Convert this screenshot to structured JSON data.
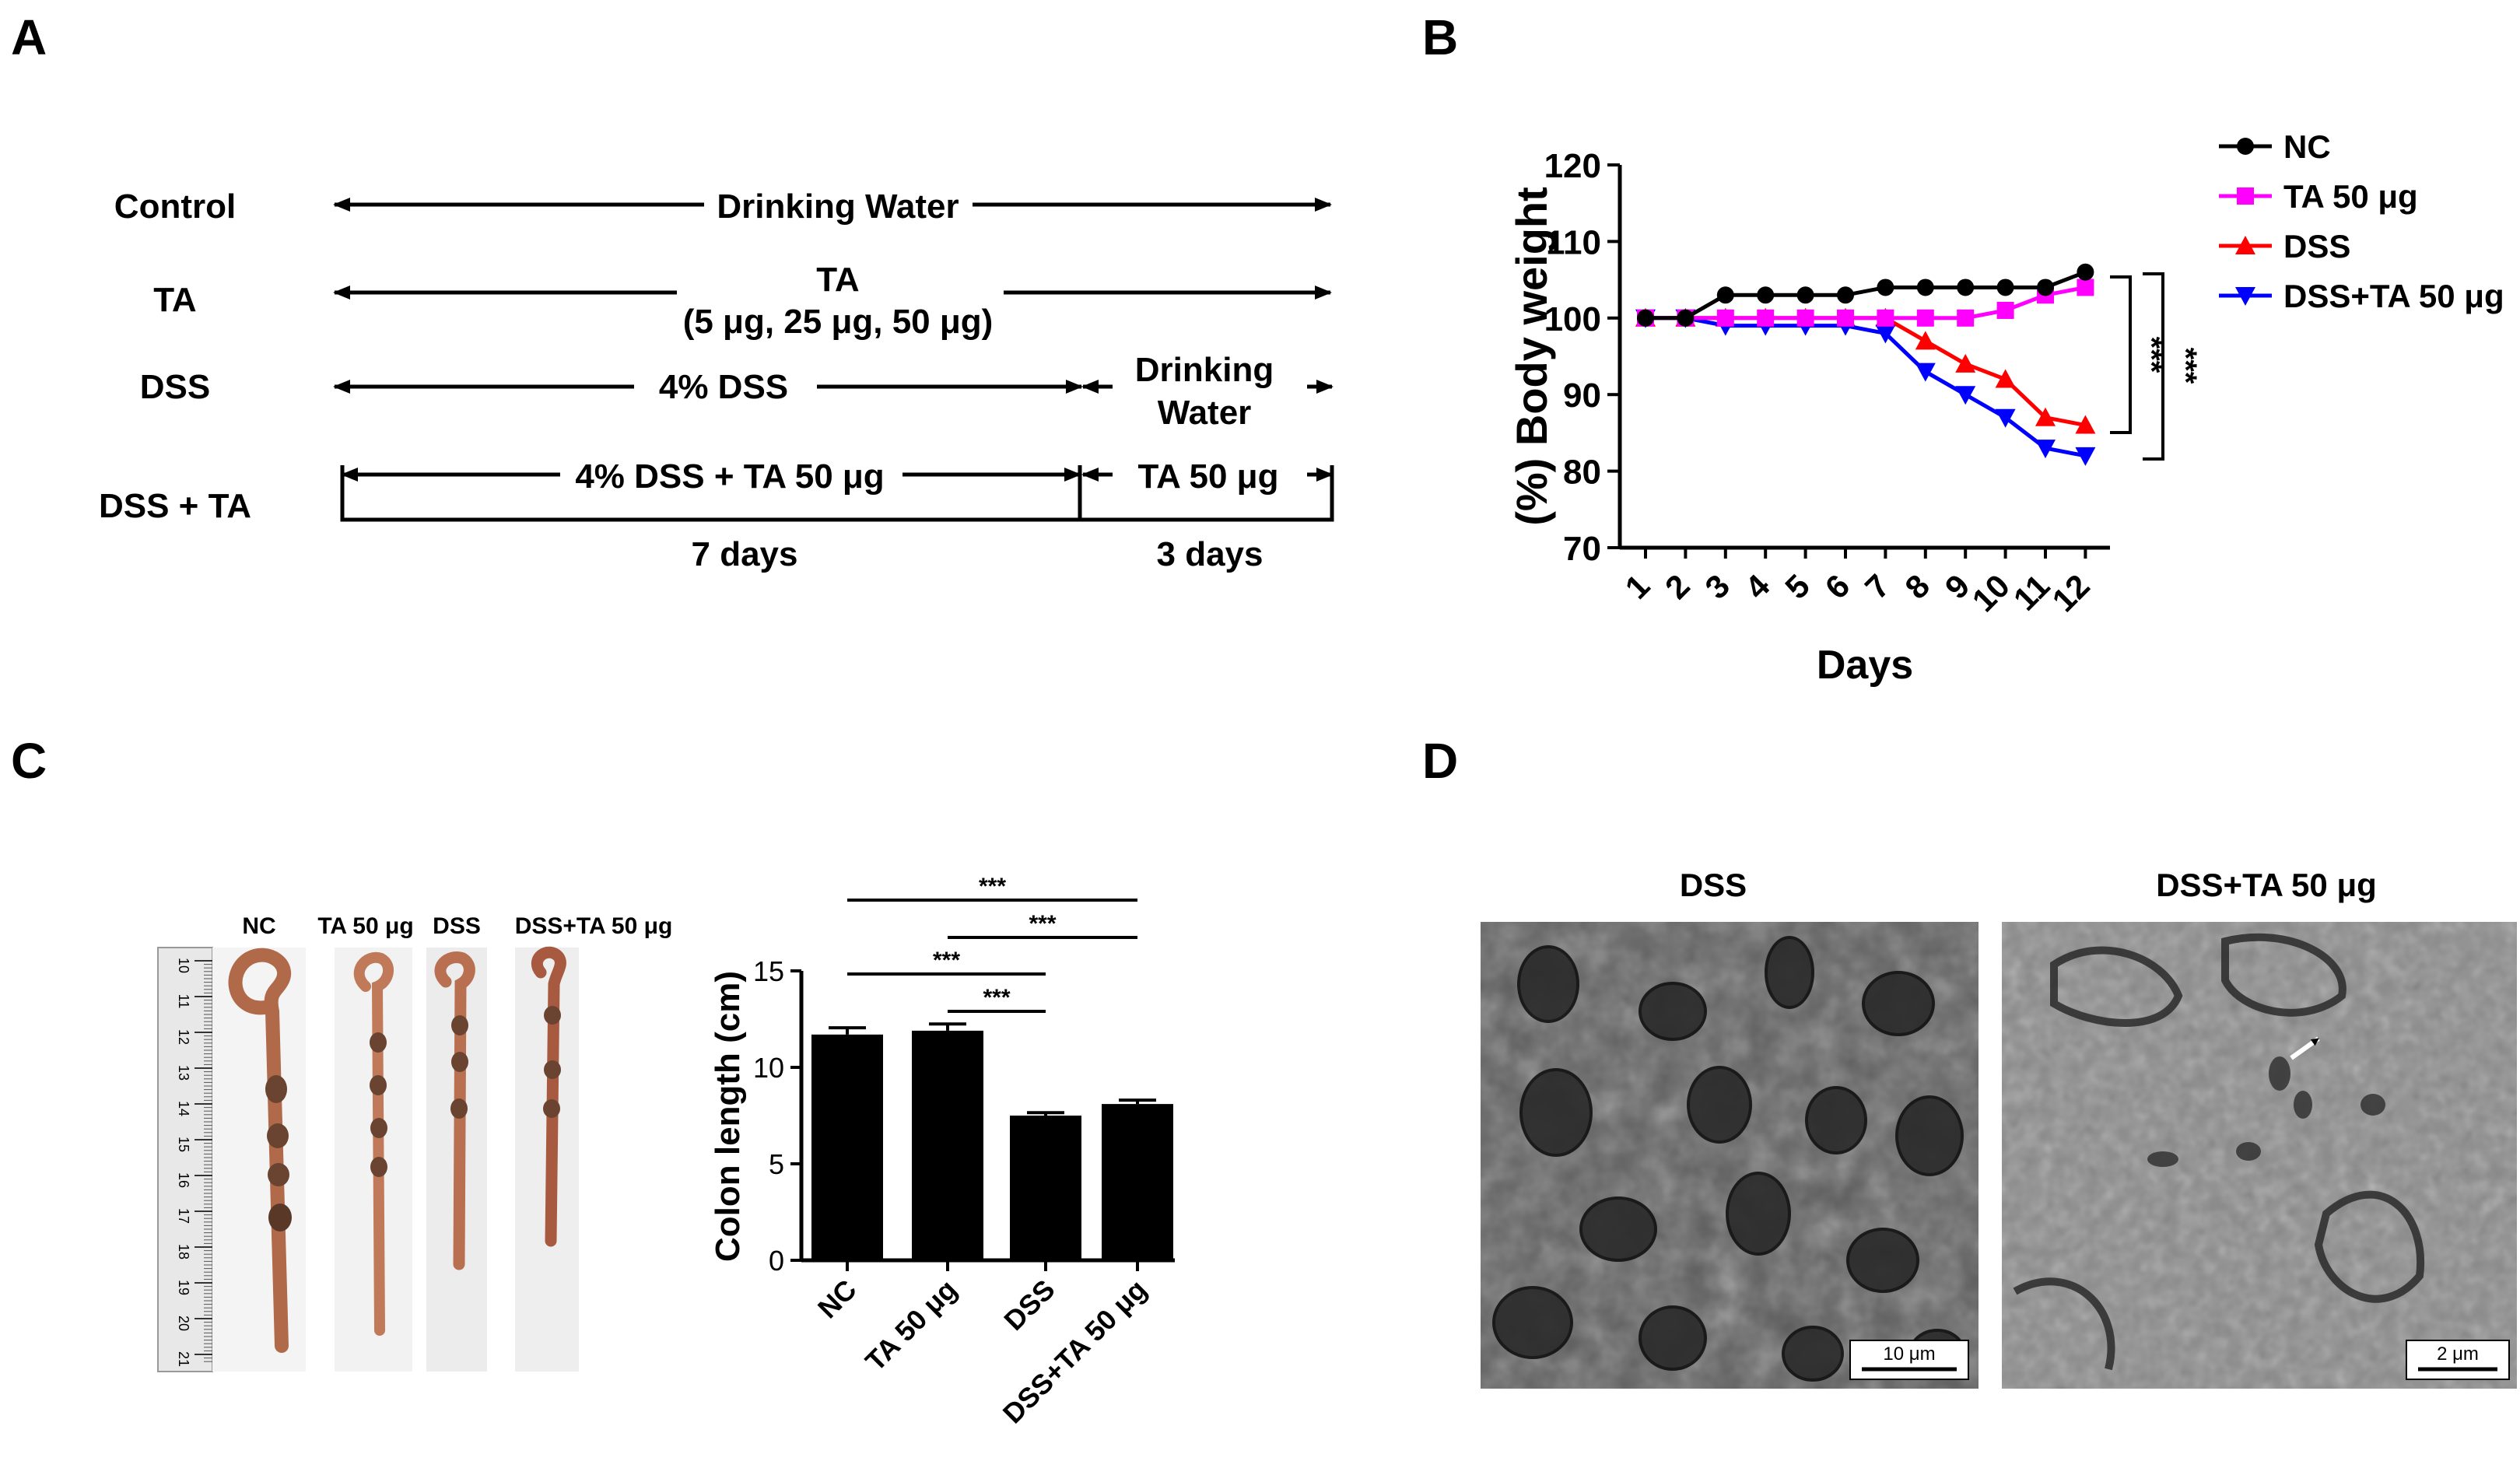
{
  "panel_labels": {
    "a": "A",
    "b": "B",
    "c": "C",
    "d": "D"
  },
  "panel_a": {
    "rows": [
      {
        "group": "Control",
        "text": "Drinking Water"
      },
      {
        "group": "TA",
        "text": "TA",
        "sub": "(5 μg, 25 μg, 50 μg)"
      },
      {
        "group": "DSS",
        "text": "4% DSS",
        "after_line1": "Drinking",
        "after_line2": "Water"
      },
      {
        "group": "DSS + TA",
        "text": "4% DSS + TA 50 μg",
        "after": "TA 50 μg"
      }
    ],
    "duration_1": "7 days",
    "duration_2": "3 days"
  },
  "panel_b": {
    "legend": [
      "NC",
      "TA 50 μg",
      "DSS",
      "DSS+TA 50 μg"
    ],
    "significance_1": "***",
    "significance_2": "***"
  },
  "panel_c": {
    "photo_labels": [
      "NC",
      "TA 50 μg",
      "DSS",
      "DSS+TA 50 μg"
    ],
    "ruler_ticks": [
      "10",
      "11",
      "12",
      "13",
      "14",
      "15",
      "16",
      "17",
      "18",
      "19",
      "20",
      "21"
    ],
    "significance": [
      "***",
      "***",
      "***",
      "***"
    ]
  },
  "panel_d": {
    "titles": [
      "DSS",
      "DSS+TA 50 μg"
    ],
    "scale_1": "10 μm",
    "scale_2": "2 μm"
  },
  "chart_data": [
    {
      "type": "line",
      "xlabel": "Days",
      "ylabel": "(%) Body weight",
      "x": [
        1,
        2,
        3,
        4,
        5,
        6,
        7,
        8,
        9,
        10,
        11,
        12
      ],
      "ylim": [
        70,
        120
      ],
      "yticks": [
        70,
        80,
        90,
        100,
        110,
        120
      ],
      "series": [
        {
          "name": "NC",
          "color": "#000000",
          "marker": "circle",
          "values": [
            100,
            100,
            103,
            103,
            103,
            103,
            104,
            104,
            104,
            104,
            104,
            106
          ]
        },
        {
          "name": "TA 50 μg",
          "color": "#ff00ff",
          "marker": "square",
          "values": [
            100,
            100,
            100,
            100,
            100,
            100,
            100,
            100,
            100,
            101,
            103,
            104
          ]
        },
        {
          "name": "DSS",
          "color": "#ff0000",
          "marker": "triangle-up",
          "values": [
            100,
            100,
            100,
            100,
            100,
            100,
            100,
            97,
            94,
            92,
            87,
            86
          ]
        },
        {
          "name": "DSS+TA 50 μg",
          "color": "#0000ff",
          "marker": "triangle-down",
          "values": [
            100,
            100,
            99,
            99,
            99,
            99,
            98,
            93,
            90,
            87,
            83,
            82
          ]
        }
      ]
    },
    {
      "type": "bar",
      "categories": [
        "NC",
        "TA 50 μg",
        "DSS",
        "DSS+TA 50 μg"
      ],
      "values": [
        11.7,
        11.9,
        7.5,
        8.1
      ],
      "errors": [
        0.35,
        0.35,
        0.15,
        0.2
      ],
      "ylabel": "Colon length (cm)",
      "ylim": [
        0,
        15
      ],
      "yticks": [
        0,
        5,
        10,
        15
      ]
    }
  ]
}
